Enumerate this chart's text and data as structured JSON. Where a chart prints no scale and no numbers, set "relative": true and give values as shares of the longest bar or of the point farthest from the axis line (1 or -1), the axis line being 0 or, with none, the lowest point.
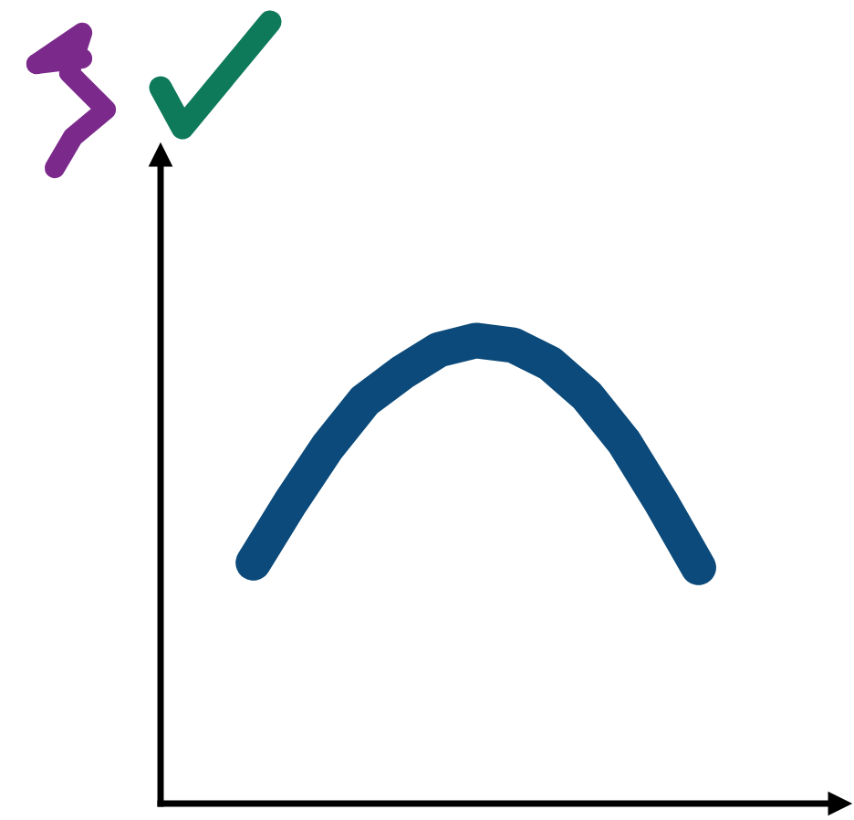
{
  "chart_data": {
    "type": "line",
    "relative": true,
    "categories": [
      null,
      null,
      null,
      null,
      null,
      null,
      null,
      null,
      null,
      null,
      null,
      null,
      null
    ],
    "series": [
      {
        "color": "#0b4a7a",
        "values": [
          0.52,
          0.65,
          0.77,
          0.87,
          0.93,
          0.98,
          1.0,
          0.99,
          0.95,
          0.88,
          0.78,
          0.65,
          0.51
        ]
      }
    ],
    "grid": false,
    "legend": false,
    "line_style": "solid"
  }
}
